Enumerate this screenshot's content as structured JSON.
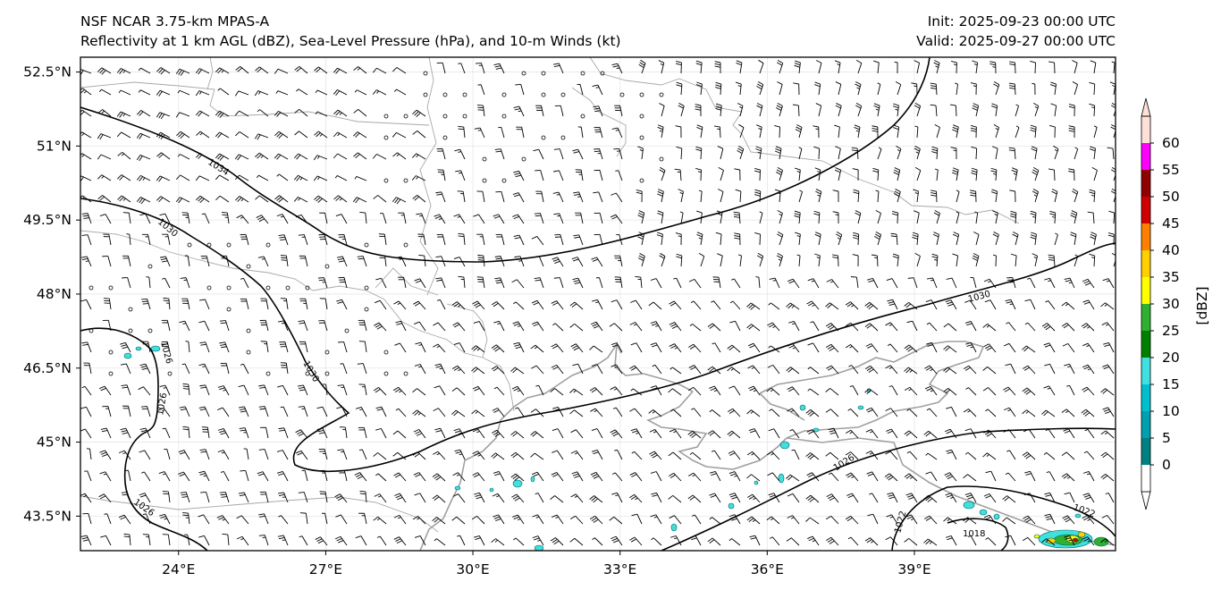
{
  "header": {
    "left_line1": "NSF NCAR 3.75-km MPAS-A",
    "left_line2": "Reflectivity at 1 km AGL (dBZ), Sea-Level Pressure (hPa), and 10-m Winds (kt)",
    "right_line1": "Init: 2025-09-23 00:00 UTC",
    "right_line2": "Valid: 2025-09-27 00:00 UTC"
  },
  "map": {
    "extent": {
      "lon_min": 22.0,
      "lon_max": 43.1,
      "lat_min": 42.8,
      "lat_max": 52.8
    },
    "lat_ticks": [
      "52.5°N",
      "51°N",
      "49.5°N",
      "48°N",
      "46.5°N",
      "45°N",
      "43.5°N"
    ],
    "lat_values": [
      52.5,
      51,
      49.5,
      48,
      46.5,
      45,
      43.5
    ],
    "lon_ticks": [
      "24°E",
      "27°E",
      "30°E",
      "33°E",
      "36°E",
      "39°E"
    ],
    "lon_values": [
      24,
      27,
      30,
      33,
      36,
      39
    ],
    "isobar_labels": [
      "1034",
      "1030",
      "1030",
      "1030",
      "1026",
      "1026",
      "1026",
      "1026",
      "1022",
      "1022",
      "1018"
    ]
  },
  "colorbar": {
    "label": "[dBZ]",
    "ticks": [
      "0",
      "5",
      "10",
      "15",
      "20",
      "25",
      "30",
      "35",
      "40",
      "45",
      "50",
      "55",
      "60"
    ],
    "colors": [
      "#ffffff",
      "#008080",
      "#00a0b0",
      "#00c0d0",
      "#40e0e0",
      "#008000",
      "#30b030",
      "#ffff00",
      "#ffd000",
      "#ff8000",
      "#d00000",
      "#900000",
      "#ff00ff",
      "#ffe0d8"
    ]
  }
}
